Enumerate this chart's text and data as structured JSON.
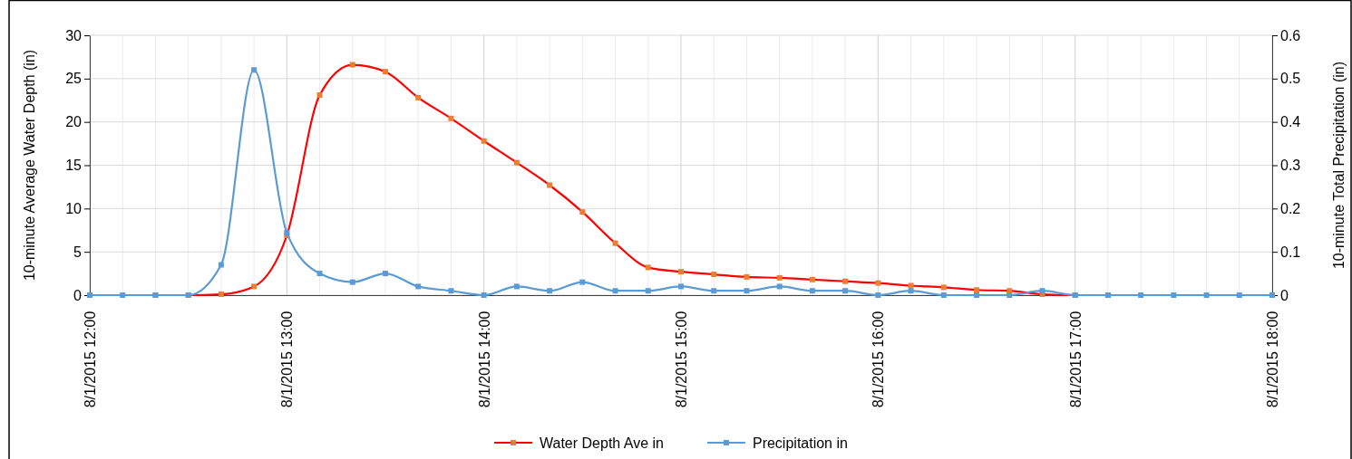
{
  "chart_data": {
    "type": "line",
    "ylabel": "10-minute Average Water Depth (in)",
    "y2label": "10-minute Total Precipitation (in)",
    "x": [
      "2015-08-01T12:00",
      "2015-08-01T12:10",
      "2015-08-01T12:20",
      "2015-08-01T12:30",
      "2015-08-01T12:40",
      "2015-08-01T12:50",
      "2015-08-01T13:00",
      "2015-08-01T13:10",
      "2015-08-01T13:20",
      "2015-08-01T13:30",
      "2015-08-01T13:40",
      "2015-08-01T13:50",
      "2015-08-01T14:00",
      "2015-08-01T14:10",
      "2015-08-01T14:20",
      "2015-08-01T14:30",
      "2015-08-01T14:40",
      "2015-08-01T14:50",
      "2015-08-01T15:00",
      "2015-08-01T15:10",
      "2015-08-01T15:20",
      "2015-08-01T15:30",
      "2015-08-01T15:40",
      "2015-08-01T15:50",
      "2015-08-01T16:00",
      "2015-08-01T16:10",
      "2015-08-01T16:20",
      "2015-08-01T16:30",
      "2015-08-01T16:40",
      "2015-08-01T16:50",
      "2015-08-01T17:00",
      "2015-08-01T17:10",
      "2015-08-01T17:20",
      "2015-08-01T17:30",
      "2015-08-01T17:40",
      "2015-08-01T17:50",
      "2015-08-01T18:00"
    ],
    "xlim": [
      "2015-08-01T12:00",
      "2015-08-01T18:00"
    ],
    "xticks": [
      {
        "value": "2015-08-01T12:00",
        "label": "8/1/2015 12:00"
      },
      {
        "value": "2015-08-01T12:10",
        "label": null
      },
      {
        "value": "2015-08-01T12:20",
        "label": null
      },
      {
        "value": "2015-08-01T12:30",
        "label": null
      },
      {
        "value": "2015-08-01T12:40",
        "label": null
      },
      {
        "value": "2015-08-01T12:50",
        "label": null
      },
      {
        "value": "2015-08-01T13:00",
        "label": "8/1/2015 13:00"
      },
      {
        "value": "2015-08-01T13:10",
        "label": null
      },
      {
        "value": "2015-08-01T13:20",
        "label": null
      },
      {
        "value": "2015-08-01T13:30",
        "label": null
      },
      {
        "value": "2015-08-01T13:40",
        "label": null
      },
      {
        "value": "2015-08-01T13:50",
        "label": null
      },
      {
        "value": "2015-08-01T14:00",
        "label": "8/1/2015 14:00"
      },
      {
        "value": "2015-08-01T14:10",
        "label": null
      },
      {
        "value": "2015-08-01T14:20",
        "label": null
      },
      {
        "value": "2015-08-01T14:30",
        "label": null
      },
      {
        "value": "2015-08-01T14:40",
        "label": null
      },
      {
        "value": "2015-08-01T14:50",
        "label": null
      },
      {
        "value": "2015-08-01T15:00",
        "label": "8/1/2015 15:00"
      },
      {
        "value": "2015-08-01T15:10",
        "label": null
      },
      {
        "value": "2015-08-01T15:20",
        "label": null
      },
      {
        "value": "2015-08-01T15:30",
        "label": null
      },
      {
        "value": "2015-08-01T15:40",
        "label": null
      },
      {
        "value": "2015-08-01T15:50",
        "label": null
      },
      {
        "value": "2015-08-01T16:00",
        "label": "8/1/2015 16:00"
      },
      {
        "value": "2015-08-01T16:10",
        "label": null
      },
      {
        "value": "2015-08-01T16:20",
        "label": null
      },
      {
        "value": "2015-08-01T16:30",
        "label": null
      },
      {
        "value": "2015-08-01T16:40",
        "label": null
      },
      {
        "value": "2015-08-01T16:50",
        "label": null
      },
      {
        "value": "2015-08-01T17:00",
        "label": "8/1/2015 17:00"
      },
      {
        "value": "2015-08-01T17:10",
        "label": null
      },
      {
        "value": "2015-08-01T17:20",
        "label": null
      },
      {
        "value": "2015-08-01T17:30",
        "label": null
      },
      {
        "value": "2015-08-01T17:40",
        "label": null
      },
      {
        "value": "2015-08-01T17:50",
        "label": null
      },
      {
        "value": "2015-08-01T18:00",
        "label": "8/1/2015 18:00"
      }
    ],
    "ylim": [
      0,
      30
    ],
    "yticks": [
      0,
      5,
      10,
      15,
      20,
      25,
      30
    ],
    "y2lim": [
      0,
      0.6
    ],
    "y2ticks": [
      0,
      0.1,
      0.2,
      0.3,
      0.4,
      0.5,
      0.6
    ],
    "grid": true,
    "legend": "bottom",
    "marker": "square",
    "line_style": "solid",
    "series": [
      {
        "name": "Water Depth Ave in",
        "color": "#ff0000",
        "values": [
          null,
          null,
          0,
          0,
          0.1,
          1.0,
          6.9,
          23.1,
          26.6,
          25.8,
          22.8,
          20.4,
          17.8,
          15.3,
          12.7,
          9.6,
          6.0,
          3.2,
          2.7,
          2.4,
          2.1,
          2.0,
          1.8,
          1.6,
          1.4,
          1.1,
          0.9,
          0.6,
          0.5,
          0.1,
          0,
          0,
          null,
          null,
          null,
          null,
          null
        ]
      },
      {
        "name": "Precipitation in",
        "color": "#5b9bd5",
        "axis": "y2",
        "values": [
          0,
          0,
          0,
          0,
          0.07,
          0.52,
          0.144,
          0.05,
          0.03,
          0.05,
          0.02,
          0.01,
          0,
          0.02,
          0.01,
          0.03,
          0.01,
          0.01,
          0.02,
          0.01,
          0.01,
          0.02,
          0.01,
          0.01,
          0,
          0.01,
          0,
          0,
          0,
          0.01,
          0,
          0,
          0,
          0,
          0,
          0,
          0
        ]
      }
    ]
  }
}
